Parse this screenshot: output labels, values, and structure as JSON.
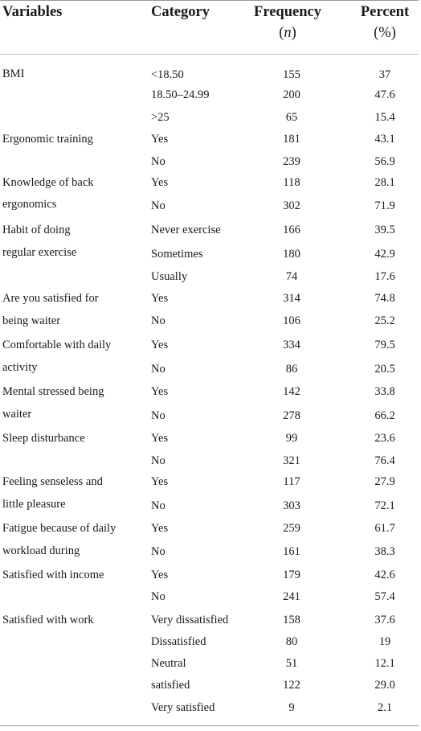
{
  "headers": {
    "variables": "Variables",
    "category": "Category",
    "frequency": "Frequency",
    "frequency_unit": "n",
    "percent": "Percent",
    "percent_unit": "(%)"
  },
  "variable_labels": [
    "BMI",
    "Ergonomic training",
    "Knowledge of back",
    "ergonomics",
    "Habit of doing",
    "regular exercise",
    "Are you satisfied for",
    "being waiter",
    "Comfortable with daily",
    "activity",
    "Mental stressed being",
    "waiter",
    "Sleep disturbance",
    "Feeling senseless and",
    "little pleasure",
    "Fatigue because of daily",
    "workload during",
    "Satisfied with income",
    "Satisfied with work"
  ],
  "rows": [
    {
      "category": "<18.50",
      "frequency": "155",
      "percent": "37"
    },
    {
      "category": "18.50–24.99",
      "frequency": "200",
      "percent": "47.6"
    },
    {
      "category": ">25",
      "frequency": "65",
      "percent": "15.4"
    },
    {
      "category": "Yes",
      "frequency": "181",
      "percent": "43.1"
    },
    {
      "category": "No",
      "frequency": "239",
      "percent": "56.9"
    },
    {
      "category": "Yes",
      "frequency": "118",
      "percent": "28.1"
    },
    {
      "category": "No",
      "frequency": "302",
      "percent": "71.9"
    },
    {
      "category": "Never exercise",
      "frequency": "166",
      "percent": "39.5"
    },
    {
      "category": "Sometimes",
      "frequency": "180",
      "percent": "42.9"
    },
    {
      "category": "Usually",
      "frequency": "74",
      "percent": "17.6"
    },
    {
      "category": "Yes",
      "frequency": "314",
      "percent": "74.8"
    },
    {
      "category": "No",
      "frequency": "106",
      "percent": "25.2"
    },
    {
      "category": "Yes",
      "frequency": "334",
      "percent": "79.5"
    },
    {
      "category": "No",
      "frequency": "86",
      "percent": "20.5"
    },
    {
      "category": "Yes",
      "frequency": "142",
      "percent": "33.8"
    },
    {
      "category": "No",
      "frequency": "278",
      "percent": "66.2"
    },
    {
      "category": "Yes",
      "frequency": "99",
      "percent": "23.6"
    },
    {
      "category": "No",
      "frequency": "321",
      "percent": "76.4"
    },
    {
      "category": "Yes",
      "frequency": "117",
      "percent": "27.9"
    },
    {
      "category": "No",
      "frequency": "303",
      "percent": "72.1"
    },
    {
      "category": "Yes",
      "frequency": "259",
      "percent": "61.7"
    },
    {
      "category": "No",
      "frequency": "161",
      "percent": "38.3"
    },
    {
      "category": "Yes",
      "frequency": "179",
      "percent": "42.6"
    },
    {
      "category": "No",
      "frequency": "241",
      "percent": "57.4"
    },
    {
      "category": "Very dissatisfied",
      "frequency": "158",
      "percent": "37.6"
    },
    {
      "category": "Dissatisfied",
      "frequency": "80",
      "percent": "19"
    },
    {
      "category": "Neutral",
      "frequency": "51",
      "percent": "12.1"
    },
    {
      "category": "satisfied",
      "frequency": "122",
      "percent": "29.0"
    },
    {
      "category": "Very satisfied",
      "frequency": "9",
      "percent": "2.1"
    }
  ]
}
